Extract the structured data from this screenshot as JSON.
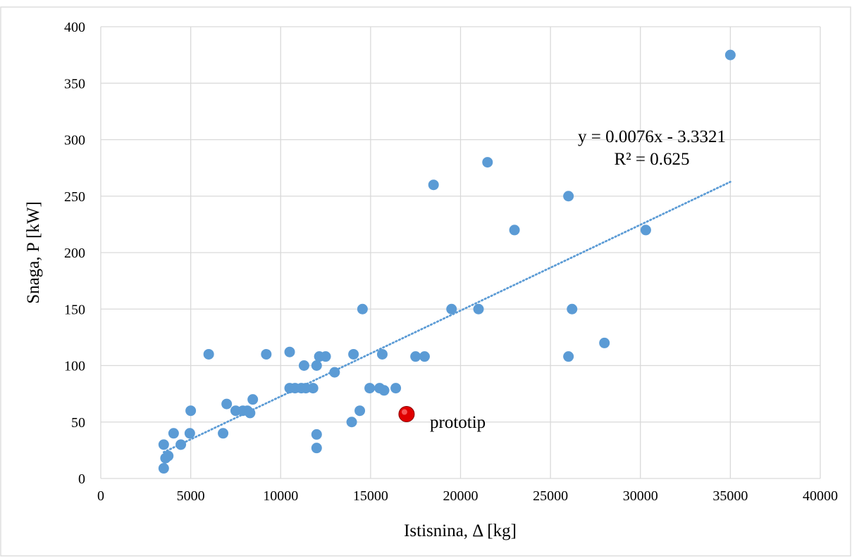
{
  "chart_data": {
    "type": "scatter",
    "xlabel": "Istisnina, Δ [kg]",
    "ylabel": "Snaga, P [kW]",
    "xlim": [
      0,
      40000
    ],
    "ylim": [
      0,
      400
    ],
    "x_ticks": [
      0,
      5000,
      10000,
      15000,
      20000,
      25000,
      30000,
      35000,
      40000
    ],
    "y_ticks": [
      0,
      50,
      100,
      150,
      200,
      250,
      300,
      350,
      400
    ],
    "x_tick_labels": [
      "0",
      "5000",
      "10000",
      "15000",
      "20000",
      "25000",
      "30000",
      "35000",
      "40000"
    ],
    "y_tick_labels": [
      "0",
      "50",
      "100",
      "150",
      "200",
      "250",
      "300",
      "350",
      "400"
    ],
    "grid": true,
    "legend": "none",
    "series": [
      {
        "color": "#5b9bd5",
        "points": [
          [
            3500,
            30
          ],
          [
            3500,
            9
          ],
          [
            3600,
            18
          ],
          [
            3750,
            20
          ],
          [
            4050,
            40
          ],
          [
            4450,
            30
          ],
          [
            4950,
            40
          ],
          [
            5000,
            60
          ],
          [
            6000,
            110
          ],
          [
            6800,
            40
          ],
          [
            7000,
            66
          ],
          [
            7500,
            60
          ],
          [
            7900,
            60
          ],
          [
            8150,
            60
          ],
          [
            8300,
            58
          ],
          [
            8450,
            70
          ],
          [
            9200,
            110
          ],
          [
            10500,
            80
          ],
          [
            10500,
            112
          ],
          [
            10800,
            80
          ],
          [
            11150,
            80
          ],
          [
            11300,
            100
          ],
          [
            11400,
            80
          ],
          [
            11800,
            80
          ],
          [
            12000,
            100
          ],
          [
            12000,
            39
          ],
          [
            12000,
            27
          ],
          [
            12150,
            108
          ],
          [
            12500,
            108
          ],
          [
            13000,
            94
          ],
          [
            13950,
            50
          ],
          [
            14050,
            110
          ],
          [
            14400,
            60
          ],
          [
            14550,
            150
          ],
          [
            14950,
            80
          ],
          [
            15500,
            80
          ],
          [
            15650,
            110
          ],
          [
            15750,
            78
          ],
          [
            16400,
            80
          ],
          [
            17500,
            108
          ],
          [
            18000,
            108
          ],
          [
            18500,
            260
          ],
          [
            19500,
            150
          ],
          [
            21000,
            150
          ],
          [
            21500,
            280
          ],
          [
            23000,
            220
          ],
          [
            26000,
            250
          ],
          [
            26000,
            108
          ],
          [
            26200,
            150
          ],
          [
            28000,
            120
          ],
          [
            30300,
            220
          ],
          [
            35000,
            375
          ]
        ]
      }
    ],
    "highlight": {
      "x": 17000,
      "y": 57,
      "label": "prototip",
      "color": "#e00000"
    },
    "trendline": {
      "slope": 0.0076,
      "intercept": -3.3321,
      "x_range": [
        3500,
        35000
      ],
      "color": "#5b9bd5",
      "equation_text": "y = 0.0076x - 3.3321",
      "r2_text": "R² = 0.625"
    },
    "colors": {
      "grid": "#d9d9d9",
      "frame": "#d9d9d9"
    }
  }
}
